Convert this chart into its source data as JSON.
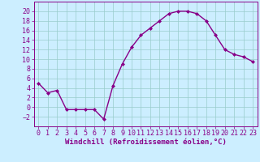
{
  "x": [
    0,
    1,
    2,
    3,
    4,
    5,
    6,
    7,
    8,
    9,
    10,
    11,
    12,
    13,
    14,
    15,
    16,
    17,
    18,
    19,
    20,
    21,
    22,
    23
  ],
  "y": [
    5,
    3,
    3.5,
    -0.5,
    -0.5,
    -0.5,
    -0.5,
    -2.5,
    4.5,
    9,
    12.5,
    15,
    16.5,
    18,
    19.5,
    20,
    20,
    19.5,
    18,
    15,
    12,
    11,
    10.5,
    9.5
  ],
  "line_color": "#880088",
  "marker": "D",
  "markersize": 2.0,
  "linewidth": 1.0,
  "xlabel": "Windchill (Refroidissement éolien,°C)",
  "xlabel_fontsize": 6.5,
  "tick_fontsize": 6,
  "ylim": [
    -4,
    22
  ],
  "xlim": [
    -0.5,
    23.5
  ],
  "yticks": [
    -2,
    0,
    2,
    4,
    6,
    8,
    10,
    12,
    14,
    16,
    18,
    20
  ],
  "xticks": [
    0,
    1,
    2,
    3,
    4,
    5,
    6,
    7,
    8,
    9,
    10,
    11,
    12,
    13,
    14,
    15,
    16,
    17,
    18,
    19,
    20,
    21,
    22,
    23
  ],
  "background_color": "#cceeff",
  "grid_color": "#99cccc",
  "spine_color": "#880088"
}
